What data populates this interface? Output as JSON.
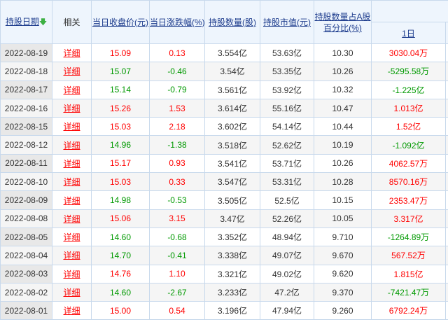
{
  "headers": {
    "date": "持股日期",
    "related": "相关",
    "close": "当日收盘价(元)",
    "change": "当日涨跌幅(%)",
    "shares": "持股数量(股)",
    "value": "持股市值(元)",
    "pct_line1": "持股数量占A股",
    "pct_line2": "百分比(%)",
    "day1": "1日"
  },
  "sort_icon": "arrow-down-icon",
  "colors": {
    "up": "#ff0000",
    "down": "#009900",
    "link": "#1b3a8c"
  },
  "rows": [
    {
      "date": "2022-08-19",
      "detail": "详细",
      "close": "15.09",
      "change": "0.13",
      "shares": "3.554亿",
      "value": "53.63亿",
      "pct": "10.30",
      "day1": "3030.04万",
      "dir": "up",
      "d1dir": "up"
    },
    {
      "date": "2022-08-18",
      "detail": "详细",
      "close": "15.07",
      "change": "-0.46",
      "shares": "3.54亿",
      "value": "53.35亿",
      "pct": "10.26",
      "day1": "-5295.58万",
      "dir": "down",
      "d1dir": "down"
    },
    {
      "date": "2022-08-17",
      "detail": "详细",
      "close": "15.14",
      "change": "-0.79",
      "shares": "3.561亿",
      "value": "53.92亿",
      "pct": "10.32",
      "day1": "-1.225亿",
      "dir": "down",
      "d1dir": "down"
    },
    {
      "date": "2022-08-16",
      "detail": "详细",
      "close": "15.26",
      "change": "1.53",
      "shares": "3.614亿",
      "value": "55.16亿",
      "pct": "10.47",
      "day1": "1.013亿",
      "dir": "up",
      "d1dir": "up"
    },
    {
      "date": "2022-08-15",
      "detail": "详细",
      "close": "15.03",
      "change": "2.18",
      "shares": "3.602亿",
      "value": "54.14亿",
      "pct": "10.44",
      "day1": "1.52亿",
      "dir": "up",
      "d1dir": "up"
    },
    {
      "date": "2022-08-12",
      "detail": "详细",
      "close": "14.96",
      "change": "-1.38",
      "shares": "3.518亿",
      "value": "52.62亿",
      "pct": "10.19",
      "day1": "-1.092亿",
      "dir": "down",
      "d1dir": "down"
    },
    {
      "date": "2022-08-11",
      "detail": "详细",
      "close": "15.17",
      "change": "0.93",
      "shares": "3.541亿",
      "value": "53.71亿",
      "pct": "10.26",
      "day1": "4062.57万",
      "dir": "up",
      "d1dir": "up"
    },
    {
      "date": "2022-08-10",
      "detail": "详细",
      "close": "15.03",
      "change": "0.33",
      "shares": "3.547亿",
      "value": "53.31亿",
      "pct": "10.28",
      "day1": "8570.16万",
      "dir": "up",
      "d1dir": "up"
    },
    {
      "date": "2022-08-09",
      "detail": "详细",
      "close": "14.98",
      "change": "-0.53",
      "shares": "3.505亿",
      "value": "52.5亿",
      "pct": "10.15",
      "day1": "2353.47万",
      "dir": "down",
      "d1dir": "up"
    },
    {
      "date": "2022-08-08",
      "detail": "详细",
      "close": "15.06",
      "change": "3.15",
      "shares": "3.47亿",
      "value": "52.26亿",
      "pct": "10.05",
      "day1": "3.317亿",
      "dir": "up",
      "d1dir": "up"
    },
    {
      "date": "2022-08-05",
      "detail": "详细",
      "close": "14.60",
      "change": "-0.68",
      "shares": "3.352亿",
      "value": "48.94亿",
      "pct": "9.710",
      "day1": "-1264.89万",
      "dir": "down",
      "d1dir": "down"
    },
    {
      "date": "2022-08-04",
      "detail": "详细",
      "close": "14.70",
      "change": "-0.41",
      "shares": "3.338亿",
      "value": "49.07亿",
      "pct": "9.670",
      "day1": "567.52万",
      "dir": "down",
      "d1dir": "up"
    },
    {
      "date": "2022-08-03",
      "detail": "详细",
      "close": "14.76",
      "change": "1.10",
      "shares": "3.321亿",
      "value": "49.02亿",
      "pct": "9.620",
      "day1": "1.815亿",
      "dir": "up",
      "d1dir": "up"
    },
    {
      "date": "2022-08-02",
      "detail": "详细",
      "close": "14.60",
      "change": "-2.67",
      "shares": "3.233亿",
      "value": "47.2亿",
      "pct": "9.370",
      "day1": "-7421.47万",
      "dir": "down",
      "d1dir": "down"
    },
    {
      "date": "2022-08-01",
      "detail": "详细",
      "close": "15.00",
      "change": "0.54",
      "shares": "3.196亿",
      "value": "47.94亿",
      "pct": "9.260",
      "day1": "6792.24万",
      "dir": "up",
      "d1dir": "up"
    }
  ]
}
